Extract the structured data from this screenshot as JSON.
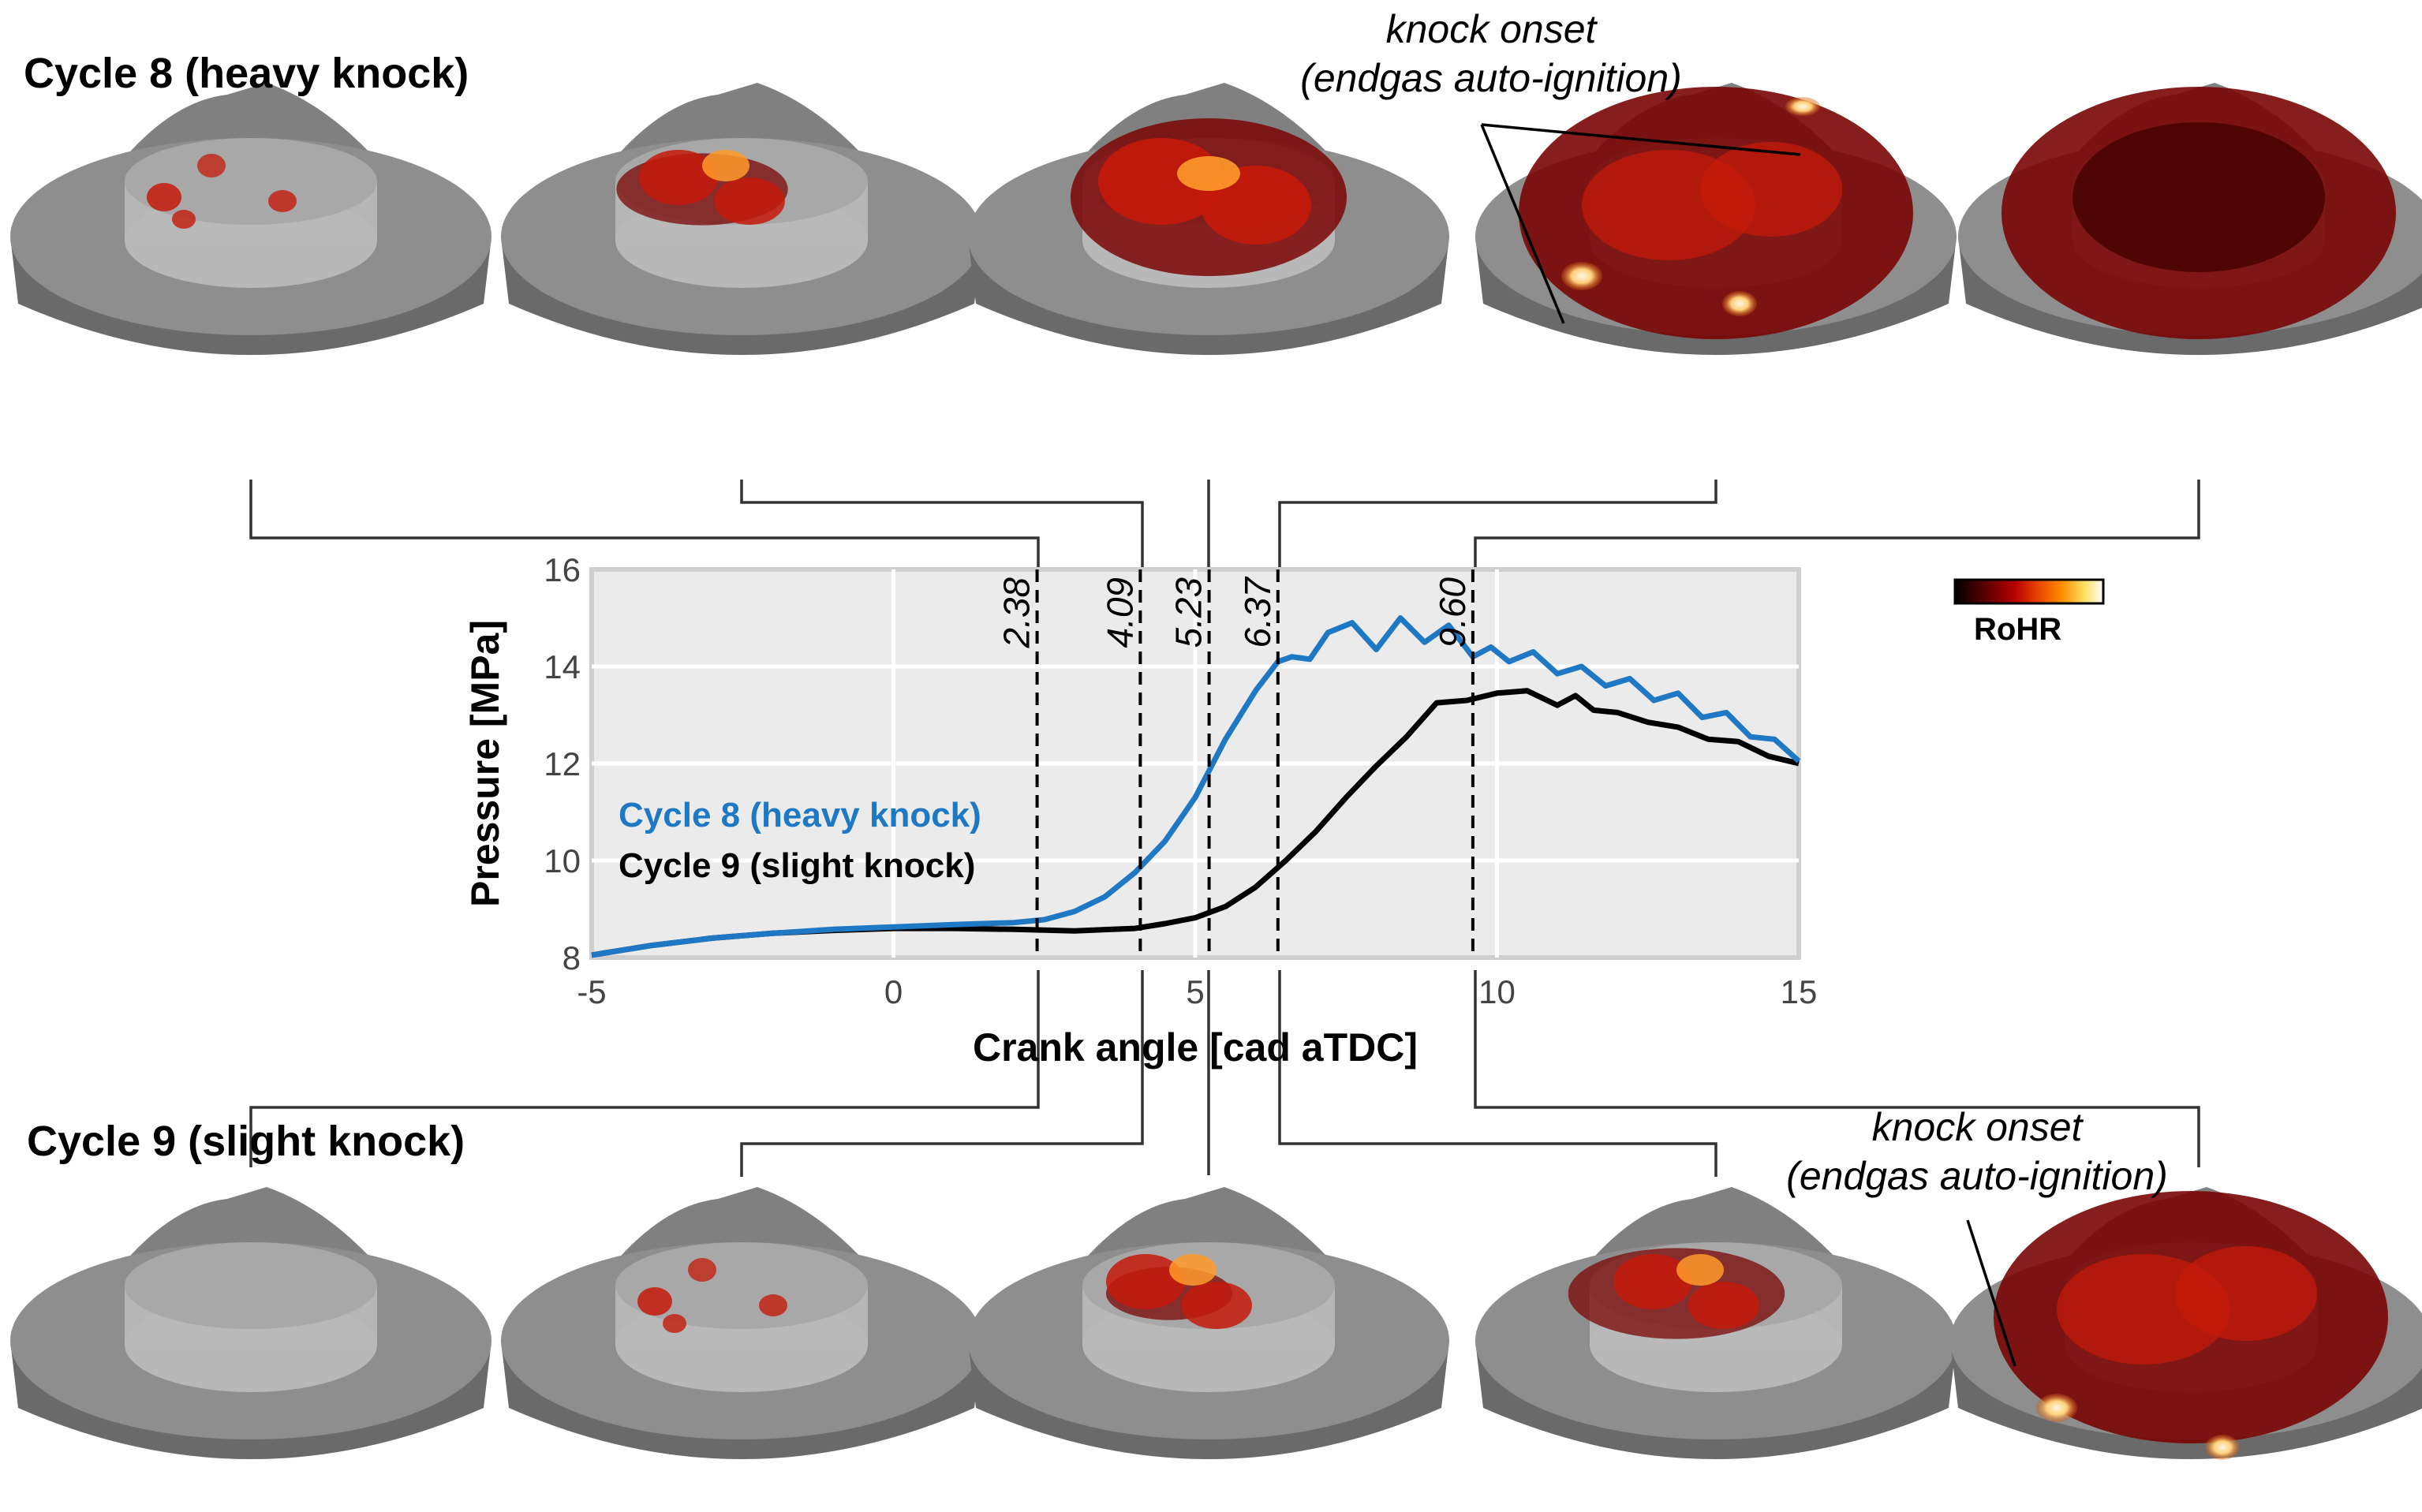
{
  "headings": {
    "cycle8": "Cycle 8 (heavy knock)",
    "cycle9": "Cycle 9 (slight knock)"
  },
  "annotations": {
    "top": {
      "line1": "knock onset",
      "line2": "(endgas auto-ignition)"
    },
    "bottom": {
      "line1": "knock onset",
      "line2": "(endgas auto-ignition)"
    }
  },
  "colorbar": {
    "label": "RoHR",
    "colors": [
      "#000000",
      "#5a0000",
      "#b40000",
      "#e64000",
      "#ff8c00",
      "#ffe060",
      "#ffffff"
    ]
  },
  "panel_colors": {
    "bowl_top": "#8e8e8e",
    "bowl_side": "#6a6a6a",
    "inner": "#b8b8b8",
    "flame_dark": "#7a0505",
    "flame_mid": "#c41a0a",
    "flame_hot": "#ff9a2a",
    "flame_bright": "#fff1c8"
  },
  "chart_data": {
    "type": "line",
    "title": "",
    "xlabel": "Crank angle [cad aTDC]",
    "ylabel": "Pressure [MPa]",
    "xlim": [
      -5,
      15
    ],
    "ylim": [
      8,
      16
    ],
    "xticks": [
      -5,
      0,
      5,
      10,
      15
    ],
    "yticks": [
      8,
      10,
      12,
      14,
      16
    ],
    "grid": true,
    "legend_position": "left",
    "series": [
      {
        "name": "Cycle 8 (heavy knock)",
        "color": "#1f78c4",
        "x": [
          -5,
          -4,
          -3,
          -2,
          -1,
          0,
          1,
          2,
          2.5,
          3,
          3.5,
          4,
          4.5,
          5,
          5.5,
          6,
          6.37,
          6.6,
          6.9,
          7.2,
          7.6,
          8,
          8.4,
          8.8,
          9.2,
          9.6,
          9.9,
          10.2,
          10.6,
          11.0,
          11.4,
          11.8,
          12.2,
          12.6,
          13.0,
          13.4,
          13.8,
          14.2,
          14.6,
          15
        ],
        "y": [
          8.05,
          8.25,
          8.4,
          8.5,
          8.58,
          8.63,
          8.68,
          8.72,
          8.78,
          8.95,
          9.25,
          9.75,
          10.4,
          11.3,
          12.5,
          13.5,
          14.1,
          14.2,
          14.15,
          14.7,
          14.9,
          14.35,
          15.0,
          14.5,
          14.85,
          14.2,
          14.4,
          14.1,
          14.3,
          13.85,
          14.0,
          13.6,
          13.75,
          13.3,
          13.45,
          12.95,
          13.05,
          12.55,
          12.5,
          12.05
        ]
      },
      {
        "name": "Cycle 9 (slight knock)",
        "color": "#000000",
        "x": [
          -5,
          -4,
          -3,
          -2,
          -1,
          0,
          1,
          2,
          3,
          4,
          4.5,
          5,
          5.5,
          6,
          6.5,
          7,
          7.5,
          8,
          8.5,
          9,
          9.5,
          10,
          10.5,
          11,
          11.3,
          11.6,
          12,
          12.5,
          13,
          13.5,
          14,
          14.5,
          15
        ],
        "y": [
          8.05,
          8.25,
          8.4,
          8.5,
          8.56,
          8.6,
          8.6,
          8.58,
          8.55,
          8.6,
          8.7,
          8.82,
          9.05,
          9.45,
          10.0,
          10.6,
          11.3,
          11.95,
          12.55,
          13.25,
          13.3,
          13.45,
          13.5,
          13.2,
          13.4,
          13.1,
          13.05,
          12.85,
          12.75,
          12.5,
          12.45,
          12.15,
          12.0
        ]
      }
    ],
    "vlines": [
      {
        "x": 2.38,
        "label": "2.38"
      },
      {
        "x": 4.09,
        "label": "4.09"
      },
      {
        "x": 5.23,
        "label": "5.23"
      },
      {
        "x": 6.37,
        "label": "6.37"
      },
      {
        "x": 9.6,
        "label": "9.60"
      }
    ]
  }
}
